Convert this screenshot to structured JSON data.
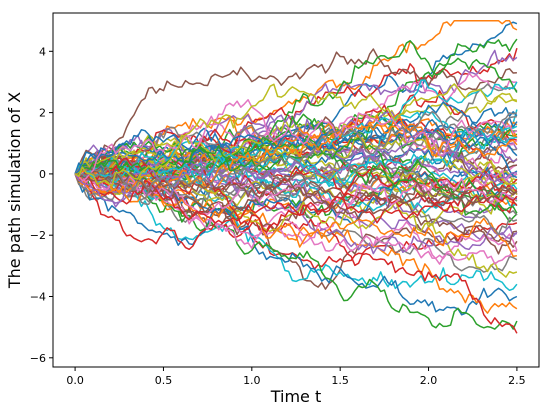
{
  "chart_data": {
    "type": "line",
    "xlabel": "Time t",
    "ylabel": "The path simulation of X",
    "xlim": [
      -0.125,
      2.625
    ],
    "ylim": [
      -6.3,
      5.25
    ],
    "xticks": [
      0.0,
      0.5,
      1.0,
      1.5,
      2.0,
      2.5
    ],
    "xtick_labels": [
      "0.0",
      "0.5",
      "1.0",
      "1.5",
      "2.0",
      "2.5"
    ],
    "yticks": [
      -6,
      -4,
      -2,
      0,
      2,
      4
    ],
    "ytick_labels": [
      "−6",
      "−4",
      "−2",
      "0",
      "2",
      "4"
    ],
    "grid": false,
    "legend": "none",
    "x_start": 0.0,
    "x_end": 2.5,
    "y_start": 0.0,
    "approx_final_values": [
      4.9,
      4.7,
      4.4,
      4.1,
      3.8,
      3.3,
      3.0,
      2.7,
      2.4,
      2.1,
      1.9,
      1.6,
      1.3,
      1.1,
      0.8,
      0.5,
      0.3,
      0.0,
      -0.2,
      -0.5,
      -0.8,
      -1.0,
      -1.3,
      -1.6,
      -1.9,
      -2.2,
      -2.5,
      -2.8,
      -3.2,
      -3.6,
      -4.0,
      -4.4,
      -4.8,
      -5.2
    ],
    "approx_max": 5.0,
    "approx_min": -5.7,
    "colors": [
      "#1f77b4",
      "#ff7f0e",
      "#2ca02c",
      "#d62728",
      "#9467bd",
      "#8c564b",
      "#e377c2",
      "#7f7f7f",
      "#bcbd22",
      "#17becf"
    ]
  }
}
